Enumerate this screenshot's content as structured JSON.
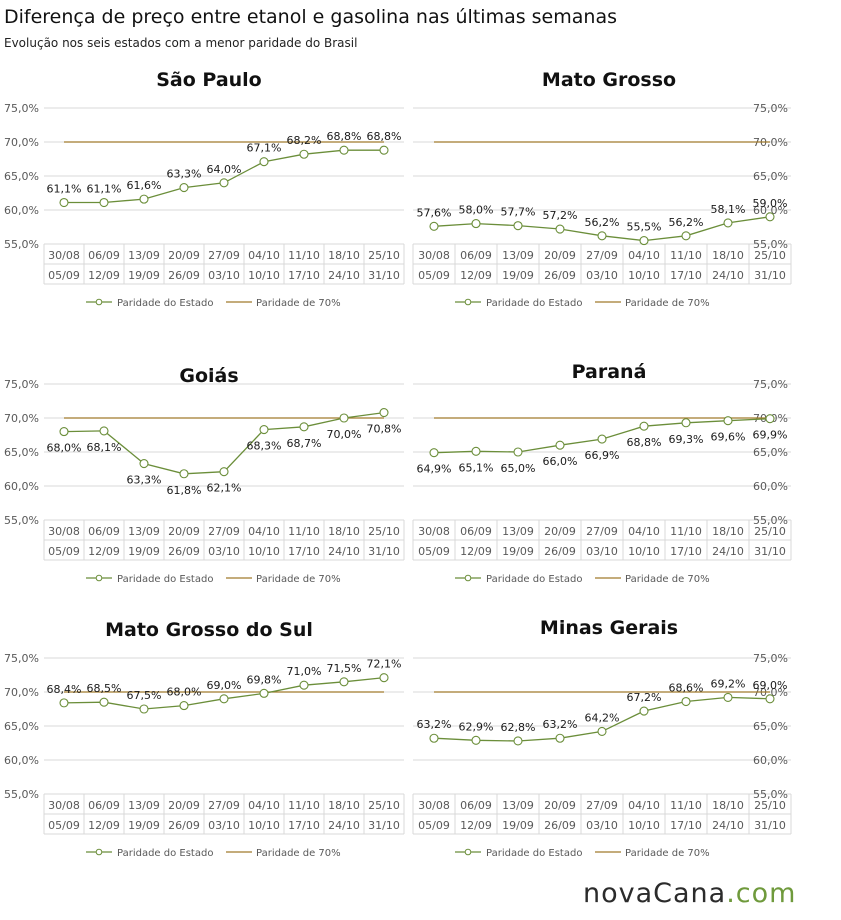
{
  "header": {
    "title": "Diferença de preço entre etanol e gasolina nas últimas semanas",
    "subtitle": "Evolução nos seis estados com a menor paridade do Brasil"
  },
  "logo": {
    "part1": "novaCana",
    "part2": ".com"
  },
  "colors": {
    "series": "#6b8e3a",
    "reference": "#a07a2c",
    "grid": "#d9d9d9",
    "axis_text": "#595959",
    "logo_accent": "#6f9a3c"
  },
  "chart_data": [
    {
      "type": "line",
      "title": "São Paulo",
      "yaxis_side": "left",
      "categories": [
        [
          "30/08",
          "05/09"
        ],
        [
          "06/09",
          "12/09"
        ],
        [
          "13/09",
          "19/09"
        ],
        [
          "20/09",
          "26/09"
        ],
        [
          "27/09",
          "03/10"
        ],
        [
          "04/10",
          "10/10"
        ],
        [
          "11/10",
          "17/10"
        ],
        [
          "18/10",
          "24/10"
        ],
        [
          "25/10",
          "31/10"
        ]
      ],
      "series": [
        {
          "name": "Paridade do Estado",
          "values": [
            61.1,
            61.1,
            61.6,
            63.3,
            64.0,
            67.1,
            68.2,
            68.8,
            68.8
          ],
          "labels": [
            "61,1%",
            "61,1%",
            "61,6%",
            "63,3%",
            "64,0%",
            "67,1%",
            "68,2%",
            "68,8%",
            "68,8%"
          ]
        },
        {
          "name": "Paridade de 70%",
          "values": [
            70,
            70,
            70,
            70,
            70,
            70,
            70,
            70,
            70
          ]
        }
      ],
      "ylim": [
        55,
        75
      ],
      "yticks": [
        "55,0%",
        "60,0%",
        "65,0%",
        "70,0%",
        "75,0%"
      ],
      "legend": "bottom"
    },
    {
      "type": "line",
      "title": "Mato Grosso",
      "yaxis_side": "right",
      "categories": [
        [
          "30/08",
          "05/09"
        ],
        [
          "06/09",
          "12/09"
        ],
        [
          "13/09",
          "19/09"
        ],
        [
          "20/09",
          "26/09"
        ],
        [
          "27/09",
          "03/10"
        ],
        [
          "04/10",
          "10/10"
        ],
        [
          "11/10",
          "17/10"
        ],
        [
          "18/10",
          "24/10"
        ],
        [
          "25/10",
          "31/10"
        ]
      ],
      "series": [
        {
          "name": "Paridade do Estado",
          "values": [
            57.6,
            58.0,
            57.7,
            57.2,
            56.2,
            55.5,
            56.2,
            58.1,
            59.0
          ],
          "labels": [
            "57,6%",
            "58,0%",
            "57,7%",
            "57,2%",
            "56,2%",
            "55,5%",
            "56,2%",
            "58,1%",
            "59,0%"
          ]
        },
        {
          "name": "Paridade de 70%",
          "values": [
            70,
            70,
            70,
            70,
            70,
            70,
            70,
            70,
            70
          ]
        }
      ],
      "ylim": [
        55,
        75
      ],
      "yticks": [
        "55,0%",
        "60,0%",
        "65,0%",
        "70,0%",
        "75,0%"
      ],
      "legend": "bottom"
    },
    {
      "type": "line",
      "title": "Goiás",
      "yaxis_side": "left",
      "categories": [
        [
          "30/08",
          "05/09"
        ],
        [
          "06/09",
          "12/09"
        ],
        [
          "13/09",
          "19/09"
        ],
        [
          "20/09",
          "26/09"
        ],
        [
          "27/09",
          "03/10"
        ],
        [
          "04/10",
          "10/10"
        ],
        [
          "11/10",
          "17/10"
        ],
        [
          "18/10",
          "24/10"
        ],
        [
          "25/10",
          "31/10"
        ]
      ],
      "series": [
        {
          "name": "Paridade do Estado",
          "values": [
            68.0,
            68.1,
            63.3,
            61.8,
            62.1,
            68.3,
            68.7,
            70.0,
            70.8
          ],
          "labels": [
            "68,0%",
            "68,1%",
            "63,3%",
            "61,8%",
            "62,1%",
            "68,3%",
            "68,7%",
            "70,0%",
            "70,8%"
          ]
        },
        {
          "name": "Paridade de 70%",
          "values": [
            70,
            70,
            70,
            70,
            70,
            70,
            70,
            70,
            70
          ]
        }
      ],
      "ylim": [
        55,
        75
      ],
      "yticks": [
        "55,0%",
        "60,0%",
        "65,0%",
        "70,0%",
        "75,0%"
      ],
      "legend": "bottom"
    },
    {
      "type": "line",
      "title": "Paraná",
      "yaxis_side": "right",
      "categories": [
        [
          "30/08",
          "05/09"
        ],
        [
          "06/09",
          "12/09"
        ],
        [
          "13/09",
          "19/09"
        ],
        [
          "20/09",
          "26/09"
        ],
        [
          "27/09",
          "03/10"
        ],
        [
          "04/10",
          "10/10"
        ],
        [
          "11/10",
          "17/10"
        ],
        [
          "18/10",
          "24/10"
        ],
        [
          "25/10",
          "31/10"
        ]
      ],
      "series": [
        {
          "name": "Paridade do Estado",
          "values": [
            64.9,
            65.1,
            65.0,
            66.0,
            66.9,
            68.8,
            69.3,
            69.6,
            69.9
          ],
          "labels": [
            "64,9%",
            "65,1%",
            "65,0%",
            "66,0%",
            "66,9%",
            "68,8%",
            "69,3%",
            "69,6%",
            "69,9%"
          ]
        },
        {
          "name": "Paridade de 70%",
          "values": [
            70,
            70,
            70,
            70,
            70,
            70,
            70,
            70,
            70
          ]
        }
      ],
      "ylim": [
        55,
        75
      ],
      "yticks": [
        "55,0%",
        "60,0%",
        "65,0%",
        "70,0%",
        "75,0%"
      ],
      "legend": "bottom"
    },
    {
      "type": "line",
      "title": "Mato Grosso do Sul",
      "yaxis_side": "left",
      "categories": [
        [
          "30/08",
          "05/09"
        ],
        [
          "06/09",
          "12/09"
        ],
        [
          "13/09",
          "19/09"
        ],
        [
          "20/09",
          "26/09"
        ],
        [
          "27/09",
          "03/10"
        ],
        [
          "04/10",
          "10/10"
        ],
        [
          "11/10",
          "17/10"
        ],
        [
          "18/10",
          "24/10"
        ],
        [
          "25/10",
          "31/10"
        ]
      ],
      "series": [
        {
          "name": "Paridade do Estado",
          "values": [
            68.4,
            68.5,
            67.5,
            68.0,
            69.0,
            69.8,
            71.0,
            71.5,
            72.1
          ],
          "labels": [
            "68,4%",
            "68,5%",
            "67,5%",
            "68,0%",
            "69,0%",
            "69,8%",
            "71,0%",
            "71,5%",
            "72,1%"
          ]
        },
        {
          "name": "Paridade de 70%",
          "values": [
            70,
            70,
            70,
            70,
            70,
            70,
            70,
            70,
            70
          ]
        }
      ],
      "ylim": [
        55,
        75
      ],
      "yticks": [
        "55,0%",
        "60,0%",
        "65,0%",
        "70,0%",
        "75,0%"
      ],
      "legend": "bottom"
    },
    {
      "type": "line",
      "title": "Minas Gerais",
      "yaxis_side": "right",
      "categories": [
        [
          "30/08",
          "05/09"
        ],
        [
          "06/09",
          "12/09"
        ],
        [
          "13/09",
          "19/09"
        ],
        [
          "20/09",
          "26/09"
        ],
        [
          "27/09",
          "03/10"
        ],
        [
          "04/10",
          "10/10"
        ],
        [
          "11/10",
          "17/10"
        ],
        [
          "18/10",
          "24/10"
        ],
        [
          "25/10",
          "31/10"
        ]
      ],
      "series": [
        {
          "name": "Paridade do Estado",
          "values": [
            63.2,
            62.9,
            62.8,
            63.2,
            64.2,
            67.2,
            68.6,
            69.2,
            69.0
          ],
          "labels": [
            "63,2%",
            "62,9%",
            "62,8%",
            "63,2%",
            "64,2%",
            "67,2%",
            "68,6%",
            "69,2%",
            "69,0%"
          ]
        },
        {
          "name": "Paridade de 70%",
          "values": [
            70,
            70,
            70,
            70,
            70,
            70,
            70,
            70,
            70
          ]
        }
      ],
      "ylim": [
        55,
        75
      ],
      "yticks": [
        "55,0%",
        "60,0%",
        "65,0%",
        "70,0%",
        "75,0%"
      ],
      "legend": "bottom"
    }
  ]
}
